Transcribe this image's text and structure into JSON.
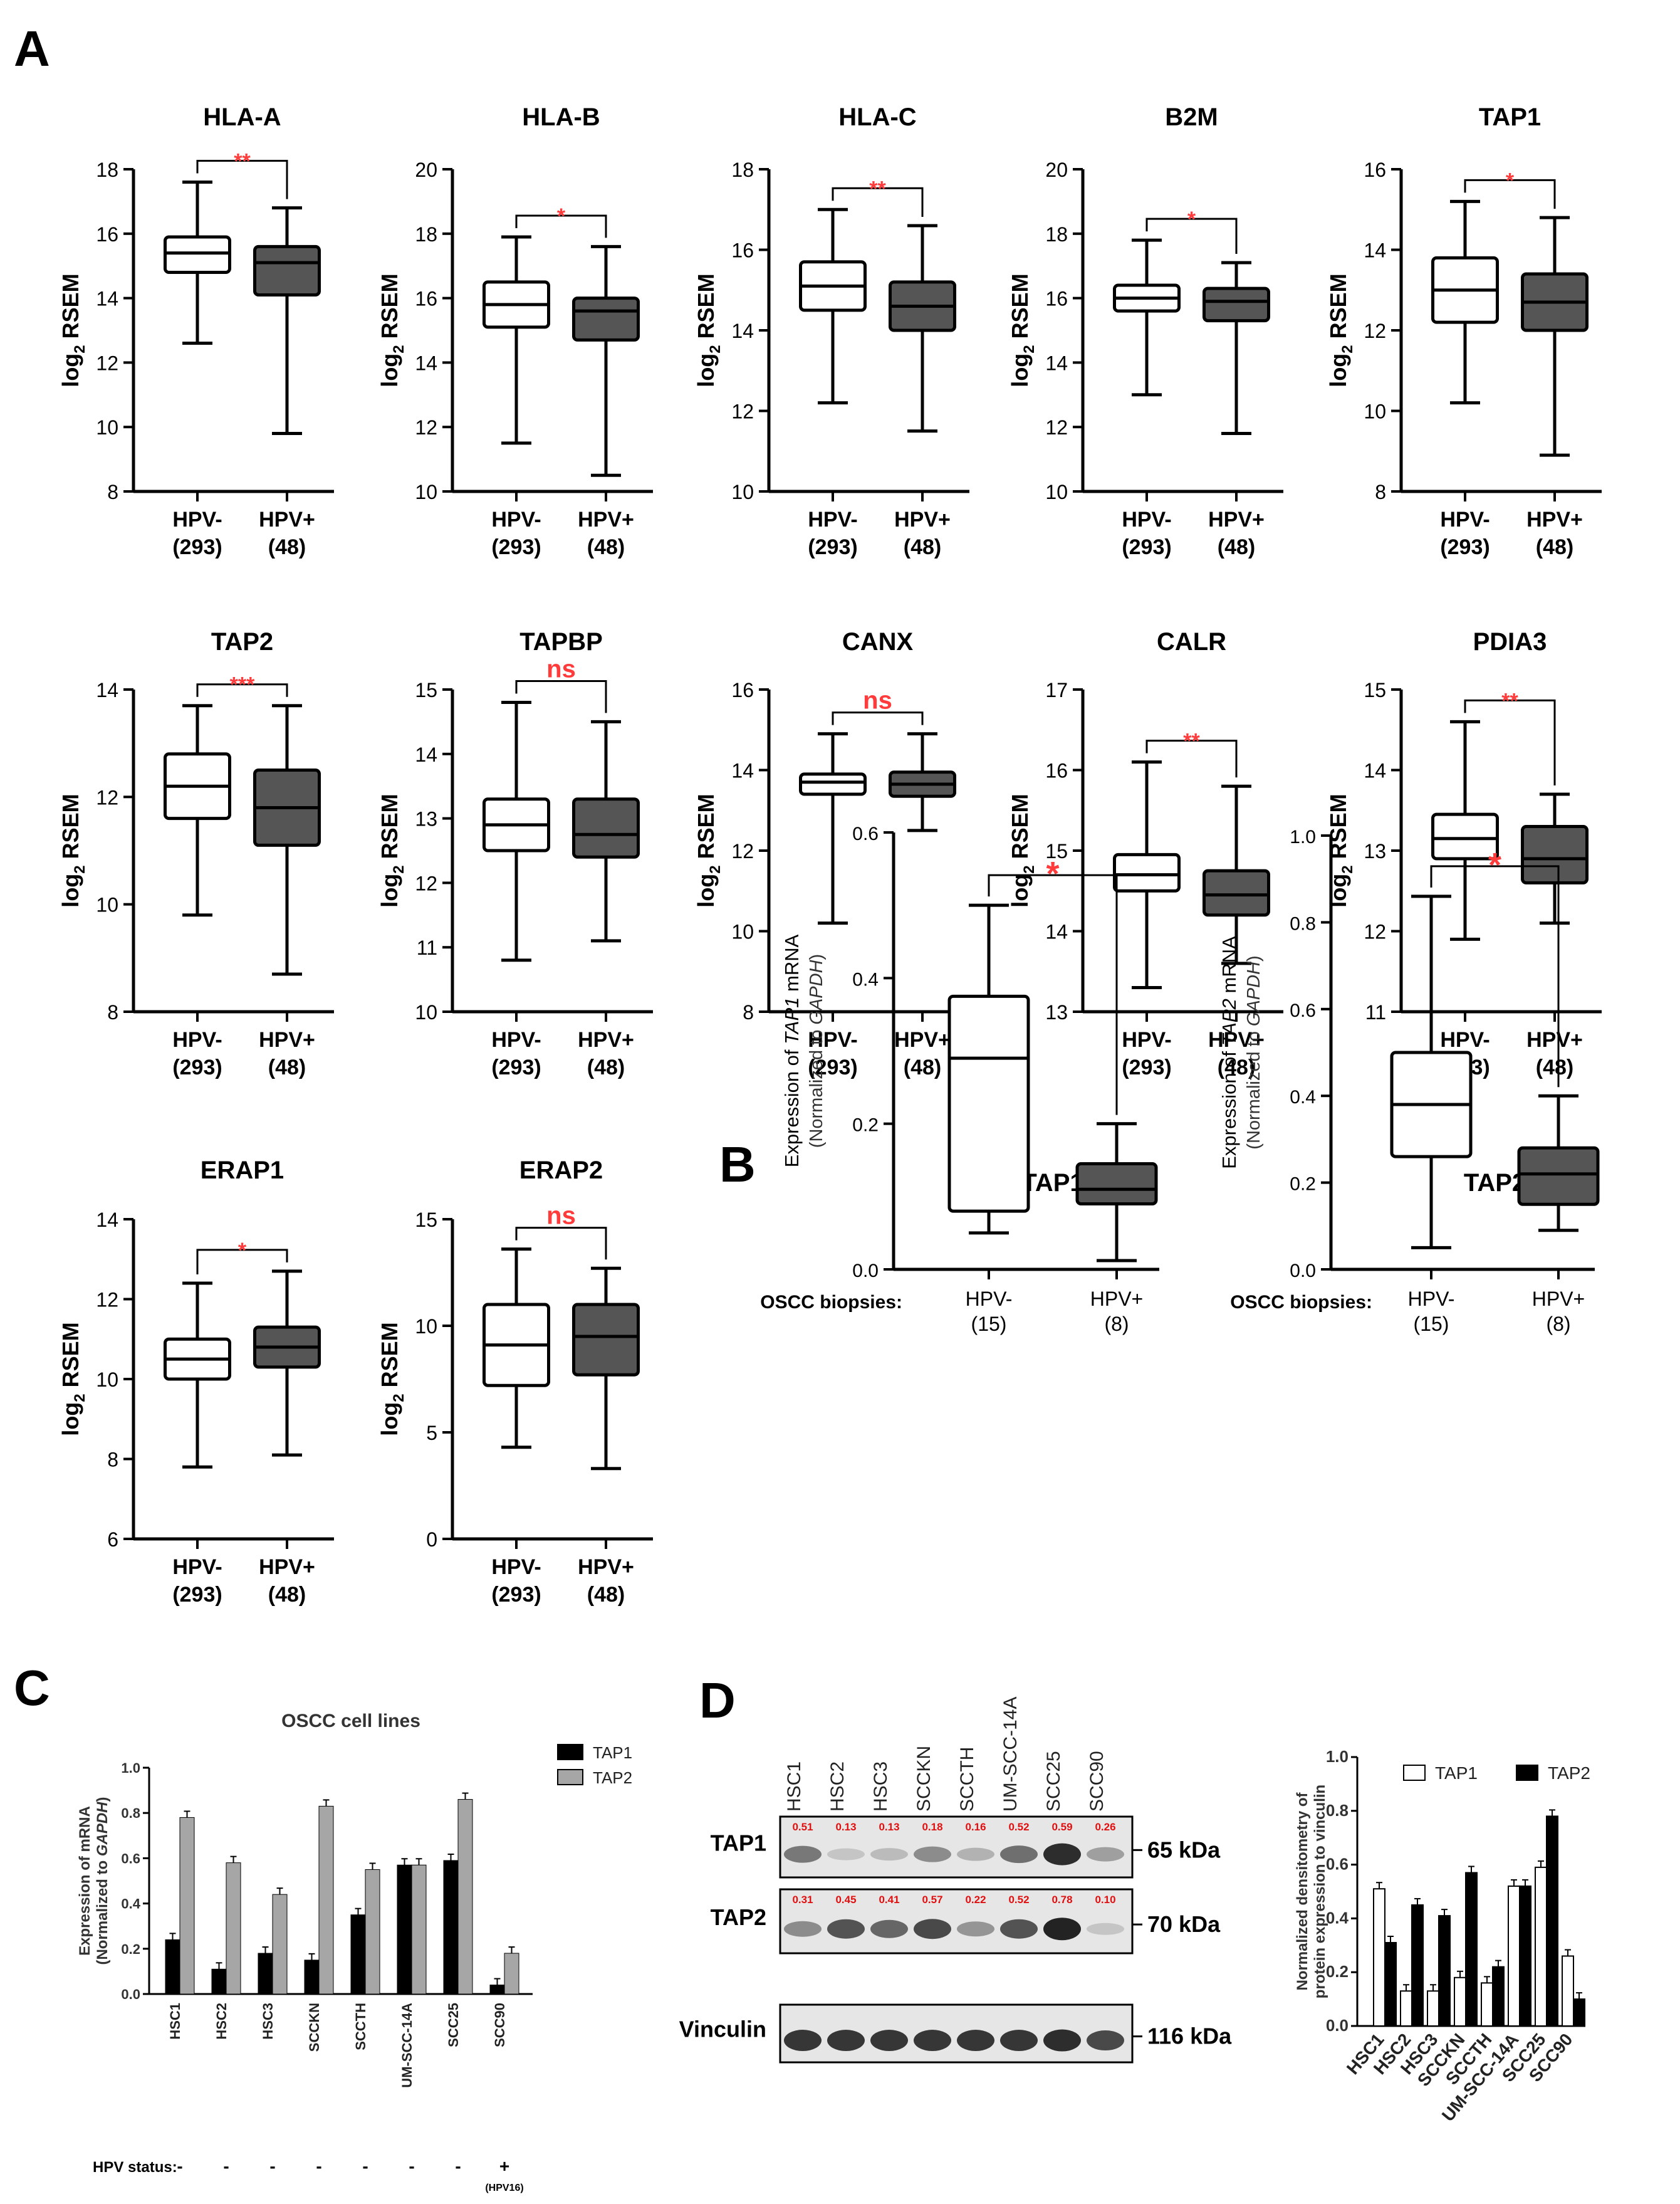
{
  "panels": {
    "A": "A",
    "B": "B",
    "C": "C",
    "D": "D"
  },
  "colors": {
    "sig": "#ff3b3b",
    "hpvpos_fill": "#555555",
    "hpvneg_fill": "#ffffff",
    "tap2_bar_c": "#a6a6a6",
    "band_label": "#e01010"
  },
  "panelA": {
    "ylabel_main": "log",
    "ylabel_sub": "2",
    "ylabel_tail": " RSEM",
    "groups": [
      {
        "name": "HPV-",
        "n": "(293)"
      },
      {
        "name": "HPV+",
        "n": "(48)"
      }
    ]
  },
  "chart_data": [
    {
      "type": "box",
      "title": "HLA-A",
      "ylim": [
        8,
        18
      ],
      "yticks": [
        "8",
        "10",
        "12",
        "14",
        "16",
        "18"
      ],
      "sig": "**",
      "series": [
        {
          "name": "HPV-",
          "min": 12.6,
          "q1": 14.8,
          "median": 15.4,
          "q3": 15.9,
          "max": 17.6
        },
        {
          "name": "HPV+",
          "min": 9.8,
          "q1": 14.1,
          "median": 15.1,
          "q3": 15.6,
          "max": 16.8
        }
      ]
    },
    {
      "type": "box",
      "title": "HLA-B",
      "ylim": [
        10,
        20
      ],
      "yticks": [
        "10",
        "12",
        "14",
        "16",
        "18",
        "20"
      ],
      "sig": "*",
      "series": [
        {
          "name": "HPV-",
          "min": 11.5,
          "q1": 15.1,
          "median": 15.8,
          "q3": 16.5,
          "max": 17.9
        },
        {
          "name": "HPV+",
          "min": 10.5,
          "q1": 14.7,
          "median": 15.6,
          "q3": 16.0,
          "max": 17.6
        }
      ]
    },
    {
      "type": "box",
      "title": "HLA-C",
      "ylim": [
        10,
        18
      ],
      "yticks": [
        "10",
        "12",
        "14",
        "16",
        "18"
      ],
      "sig": "**",
      "series": [
        {
          "name": "HPV-",
          "min": 12.2,
          "q1": 14.5,
          "median": 15.1,
          "q3": 15.7,
          "max": 17.0
        },
        {
          "name": "HPV+",
          "min": 11.5,
          "q1": 14.0,
          "median": 14.6,
          "q3": 15.2,
          "max": 16.6
        }
      ]
    },
    {
      "type": "box",
      "title": "B2M",
      "ylim": [
        10,
        20
      ],
      "yticks": [
        "10",
        "12",
        "14",
        "16",
        "18",
        "20"
      ],
      "sig": "*",
      "series": [
        {
          "name": "HPV-",
          "min": 13.0,
          "q1": 15.6,
          "median": 16.0,
          "q3": 16.4,
          "max": 17.8
        },
        {
          "name": "HPV+",
          "min": 11.8,
          "q1": 15.3,
          "median": 15.9,
          "q3": 16.3,
          "max": 17.1
        }
      ]
    },
    {
      "type": "box",
      "title": "TAP1",
      "ylim": [
        8,
        16
      ],
      "yticks": [
        "8",
        "10",
        "12",
        "14",
        "16"
      ],
      "sig": "*",
      "series": [
        {
          "name": "HPV-",
          "min": 10.2,
          "q1": 12.2,
          "median": 13.0,
          "q3": 13.8,
          "max": 15.2
        },
        {
          "name": "HPV+",
          "min": 8.9,
          "q1": 12.0,
          "median": 12.7,
          "q3": 13.4,
          "max": 14.8
        }
      ]
    },
    {
      "type": "box",
      "title": "TAP2",
      "ylim": [
        8,
        14
      ],
      "yticks": [
        "8",
        "10",
        "12",
        "14"
      ],
      "sig": "***",
      "series": [
        {
          "name": "HPV-",
          "min": 9.8,
          "q1": 11.6,
          "median": 12.2,
          "q3": 12.8,
          "max": 13.7
        },
        {
          "name": "HPV+",
          "min": 8.7,
          "q1": 11.1,
          "median": 11.8,
          "q3": 12.5,
          "max": 13.7
        }
      ]
    },
    {
      "type": "box",
      "title": "TAPBP",
      "ylim": [
        10,
        15
      ],
      "yticks": [
        "10",
        "11",
        "12",
        "13",
        "14",
        "15"
      ],
      "sig": "ns",
      "series": [
        {
          "name": "HPV-",
          "min": 10.8,
          "q1": 12.5,
          "median": 12.9,
          "q3": 13.3,
          "max": 14.8
        },
        {
          "name": "HPV+",
          "min": 11.1,
          "q1": 12.4,
          "median": 12.75,
          "q3": 13.3,
          "max": 14.5
        }
      ]
    },
    {
      "type": "box",
      "title": "CANX",
      "ylim": [
        8,
        16
      ],
      "yticks": [
        "8",
        "10",
        "12",
        "14",
        "16"
      ],
      "sig": "ns",
      "series": [
        {
          "name": "HPV-",
          "min": 10.2,
          "q1": 13.4,
          "median": 13.7,
          "q3": 13.9,
          "max": 14.9
        },
        {
          "name": "HPV+",
          "min": 12.5,
          "q1": 13.35,
          "median": 13.65,
          "q3": 13.95,
          "max": 14.9
        }
      ]
    },
    {
      "type": "box",
      "title": "CALR",
      "ylim": [
        13,
        17
      ],
      "yticks": [
        "13",
        "14",
        "15",
        "16",
        "17"
      ],
      "sig": "**",
      "series": [
        {
          "name": "HPV-",
          "min": 13.3,
          "q1": 14.5,
          "median": 14.7,
          "q3": 14.95,
          "max": 16.1
        },
        {
          "name": "HPV+",
          "min": 13.6,
          "q1": 14.2,
          "median": 14.45,
          "q3": 14.75,
          "max": 15.8
        }
      ]
    },
    {
      "type": "box",
      "title": "PDIA3",
      "ylim": [
        11,
        15
      ],
      "yticks": [
        "11",
        "12",
        "13",
        "14",
        "15"
      ],
      "sig": "**",
      "series": [
        {
          "name": "HPV-",
          "min": 11.9,
          "q1": 12.9,
          "median": 13.15,
          "q3": 13.45,
          "max": 14.6
        },
        {
          "name": "HPV+",
          "min": 12.1,
          "q1": 12.6,
          "median": 12.9,
          "q3": 13.3,
          "max": 13.7
        }
      ]
    },
    {
      "type": "box",
      "title": "ERAP1",
      "ylim": [
        6,
        14
      ],
      "yticks": [
        "6",
        "8",
        "10",
        "12",
        "14"
      ],
      "sig": "*",
      "series": [
        {
          "name": "HPV-",
          "min": 7.8,
          "q1": 10.0,
          "median": 10.5,
          "q3": 11.0,
          "max": 12.4
        },
        {
          "name": "HPV+",
          "min": 8.1,
          "q1": 10.3,
          "median": 10.8,
          "q3": 11.3,
          "max": 12.7
        }
      ]
    },
    {
      "type": "box",
      "title": "ERAP2",
      "ylim": [
        0,
        15
      ],
      "yticks": [
        "0",
        "5",
        "10",
        "15"
      ],
      "sig": "ns",
      "series": [
        {
          "name": "HPV-",
          "min": 4.3,
          "q1": 7.2,
          "median": 9.1,
          "q3": 11.0,
          "max": 13.6
        },
        {
          "name": "HPV+",
          "min": 3.3,
          "q1": 7.7,
          "median": 9.5,
          "q3": 11.0,
          "max": 12.7
        }
      ]
    },
    {
      "type": "box",
      "title": "TAP1",
      "ylim": [
        0,
        0.6
      ],
      "yticks": [
        "0.0",
        "0.2",
        "0.4",
        "0.6"
      ],
      "sig": "*",
      "ylabel_a": "Expression of ",
      "ylabel_gene": "TAP1",
      "ylabel_b": " mRNA",
      "ylabel_2a": "(Normalized to ",
      "ylabel_2gene": "GAPDH",
      "ylabel_2b": ")",
      "row_label": "OSCC biopsies:",
      "groups": [
        {
          "name": "HPV-",
          "n": "(15)"
        },
        {
          "name": "HPV+",
          "n": "(8)"
        }
      ],
      "series": [
        {
          "name": "HPV-",
          "min": 0.05,
          "q1": 0.08,
          "median": 0.29,
          "q3": 0.375,
          "max": 0.5
        },
        {
          "name": "HPV+",
          "min": 0.012,
          "q1": 0.09,
          "median": 0.11,
          "q3": 0.145,
          "max": 0.2
        }
      ]
    },
    {
      "type": "box",
      "title": "TAP2",
      "ylim": [
        0,
        1.0
      ],
      "yticks": [
        "0.0",
        "0.2",
        "0.4",
        "0.6",
        "0.8",
        "1.0"
      ],
      "sig": "*",
      "ylabel_a": "Expression of ",
      "ylabel_gene": "TAP2",
      "ylabel_b": " mRNA",
      "ylabel_2a": "(Normalized to ",
      "ylabel_2gene": "GAPDH",
      "ylabel_2b": ")",
      "row_label": "OSCC biopsies:",
      "groups": [
        {
          "name": "HPV-",
          "n": "(15)"
        },
        {
          "name": "HPV+",
          "n": "(8)"
        }
      ],
      "series": [
        {
          "name": "HPV-",
          "min": 0.05,
          "q1": 0.26,
          "median": 0.38,
          "q3": 0.5,
          "max": 0.86
        },
        {
          "name": "HPV+",
          "min": 0.09,
          "q1": 0.15,
          "median": 0.22,
          "q3": 0.28,
          "max": 0.4
        }
      ]
    },
    {
      "type": "bar",
      "title": "OSCC cell lines",
      "ylim": [
        0,
        1.0
      ],
      "yticks": [
        "0.0",
        "0.2",
        "0.4",
        "0.6",
        "0.8",
        "1.0"
      ],
      "ylabel_1": "Expression of mRNA",
      "ylabel_2a": "(Normalized to ",
      "ylabel_2gene": "GAPDH",
      "ylabel_2b": ")",
      "categories": [
        "HSC1",
        "HSC2",
        "HSC3",
        "SCCKN",
        "SCCTH",
        "UM-SCC-14A",
        "SCC25",
        "SCC90"
      ],
      "series": [
        {
          "name": "TAP1",
          "values": [
            0.24,
            0.11,
            0.18,
            0.15,
            0.35,
            0.57,
            0.59,
            0.04
          ]
        },
        {
          "name": "TAP2",
          "values": [
            0.78,
            0.58,
            0.44,
            0.83,
            0.55,
            0.57,
            0.86,
            0.18
          ]
        }
      ],
      "hpv_label": "HPV status:",
      "hpv_status": [
        "-",
        "-",
        "-",
        "-",
        "-",
        "-",
        "-",
        "+"
      ],
      "hpv_note": "(HPV16)"
    },
    {
      "type": "bar",
      "title": "",
      "ylim": [
        0,
        1.0
      ],
      "yticks": [
        "0.0",
        "0.2",
        "0.4",
        "0.6",
        "0.8",
        "1.0"
      ],
      "ylabel_1": "Normalized densitometry of",
      "ylabel_2": "protein expression to vinculin",
      "categories": [
        "HSC1",
        "HSC2",
        "HSC3",
        "SCCKN",
        "SCCTH",
        "UM-SCC-14A",
        "SCC25",
        "SCC90"
      ],
      "series": [
        {
          "name": "TAP1",
          "values": [
            0.51,
            0.13,
            0.13,
            0.18,
            0.16,
            0.52,
            0.59,
            0.26
          ]
        },
        {
          "name": "TAP2",
          "values": [
            0.31,
            0.45,
            0.41,
            0.57,
            0.22,
            0.52,
            0.78,
            0.1
          ]
        }
      ]
    }
  ],
  "blot": {
    "lanes": [
      "HSC1",
      "HSC2",
      "HSC3",
      "SCCKN",
      "SCCTH",
      "UM-SCC-14A",
      "SCC25",
      "SCC90"
    ],
    "rows": [
      {
        "label": "TAP1",
        "kda": "65 kDa",
        "values": [
          "0.51",
          "0.13",
          "0.13",
          "0.18",
          "0.16",
          "0.52",
          "0.59",
          "0.26"
        ],
        "intensity": [
          0.55,
          0.15,
          0.2,
          0.45,
          0.25,
          0.6,
          0.95,
          0.35
        ]
      },
      {
        "label": "TAP2",
        "kda": "70 kDa",
        "values": [
          "0.31",
          "0.45",
          "0.41",
          "0.57",
          "0.22",
          "0.52",
          "0.78",
          "0.10"
        ],
        "intensity": [
          0.45,
          0.75,
          0.65,
          0.8,
          0.4,
          0.75,
          1.0,
          0.15
        ]
      },
      {
        "label": "Vinculin",
        "kda": "116 kDa",
        "values": [],
        "intensity": [
          0.9,
          0.9,
          0.9,
          0.9,
          0.9,
          0.9,
          0.95,
          0.8
        ]
      }
    ]
  }
}
